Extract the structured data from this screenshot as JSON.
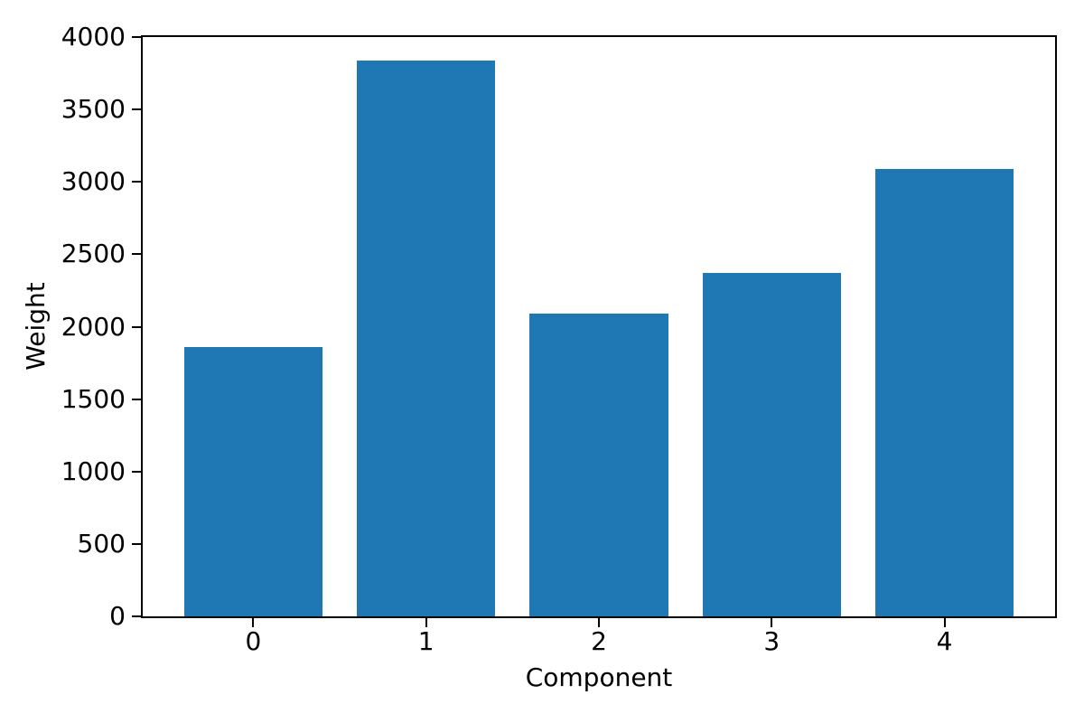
{
  "chart_data": {
    "type": "bar",
    "title": "",
    "xlabel": "Component",
    "ylabel": "Weight",
    "categories": [
      "0",
      "1",
      "2",
      "3",
      "4"
    ],
    "values": [
      1860,
      3840,
      2090,
      2370,
      3090
    ],
    "ylim": [
      0,
      4000
    ],
    "yticks": [
      0,
      500,
      1000,
      1500,
      2000,
      2500,
      3000,
      3500,
      4000
    ],
    "ytick_labels": [
      "0",
      "500",
      "1000",
      "1500",
      "2000",
      "2500",
      "3000",
      "3500",
      "4000"
    ],
    "xlim": [
      -0.64,
      4.64
    ],
    "bar_width_units": 0.8,
    "grid": false,
    "legend_position": "none",
    "bar_color": "#1f77b4",
    "axis_color": "#000000",
    "text_color": "#000000",
    "background_color": "#ffffff"
  }
}
